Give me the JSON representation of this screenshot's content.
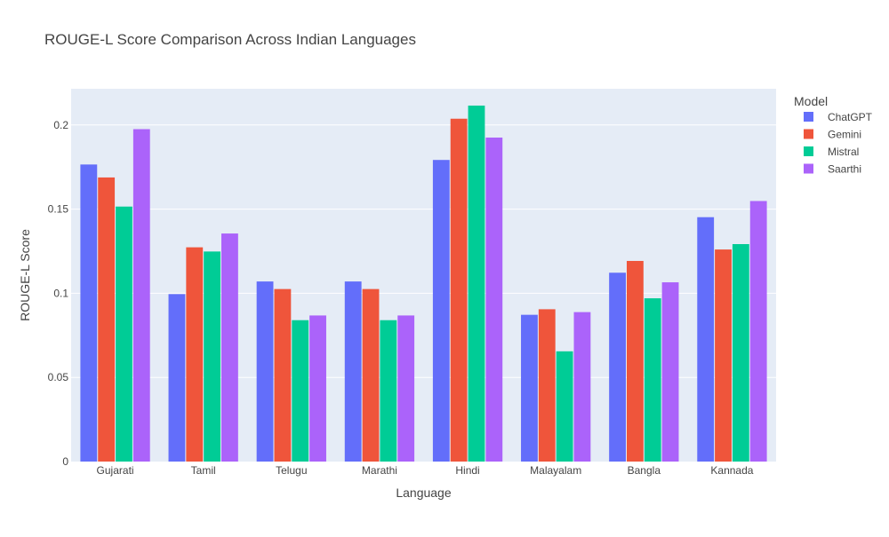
{
  "chart_data": {
    "type": "bar",
    "title": "ROUGE-L Score Comparison Across Indian Languages",
    "xlabel": "Language",
    "ylabel": "ROUGE-L Score",
    "ylim": [
      0,
      0.2215
    ],
    "yticks": [
      0,
      0.05,
      0.1,
      0.15,
      0.2
    ],
    "ytick_labels": [
      "0",
      "0.05",
      "0.1",
      "0.15",
      "0.2"
    ],
    "grid": true,
    "barmode": "grouped",
    "legend": {
      "title": "Model",
      "placement": "top-right"
    },
    "categories": [
      "Gujarati",
      "Tamil",
      "Telugu",
      "Marathi",
      "Hindi",
      "Malayalam",
      "Bangla",
      "Kannada"
    ],
    "series": [
      {
        "name": "ChatGPT",
        "color": "#636efa",
        "values": [
          0.1765,
          0.0995,
          0.107,
          0.107,
          0.1792,
          0.0872,
          0.1122,
          0.1452
        ]
      },
      {
        "name": "Gemini",
        "color": "#ef553b",
        "values": [
          0.1688,
          0.1273,
          0.1025,
          0.1025,
          0.2037,
          0.0905,
          0.1192,
          0.126
        ]
      },
      {
        "name": "Mistral",
        "color": "#00cc96",
        "values": [
          0.1515,
          0.1248,
          0.084,
          0.084,
          0.2115,
          0.0655,
          0.097,
          0.1292
        ]
      },
      {
        "name": "Saarthi",
        "color": "#ab63fa",
        "values": [
          0.1975,
          0.1355,
          0.0868,
          0.0868,
          0.1925,
          0.0888,
          0.1065,
          0.1548
        ]
      }
    ],
    "colors": {
      "plot_background": "#e5ecf6",
      "gridline": "#ffffff",
      "text": "#444444"
    }
  }
}
